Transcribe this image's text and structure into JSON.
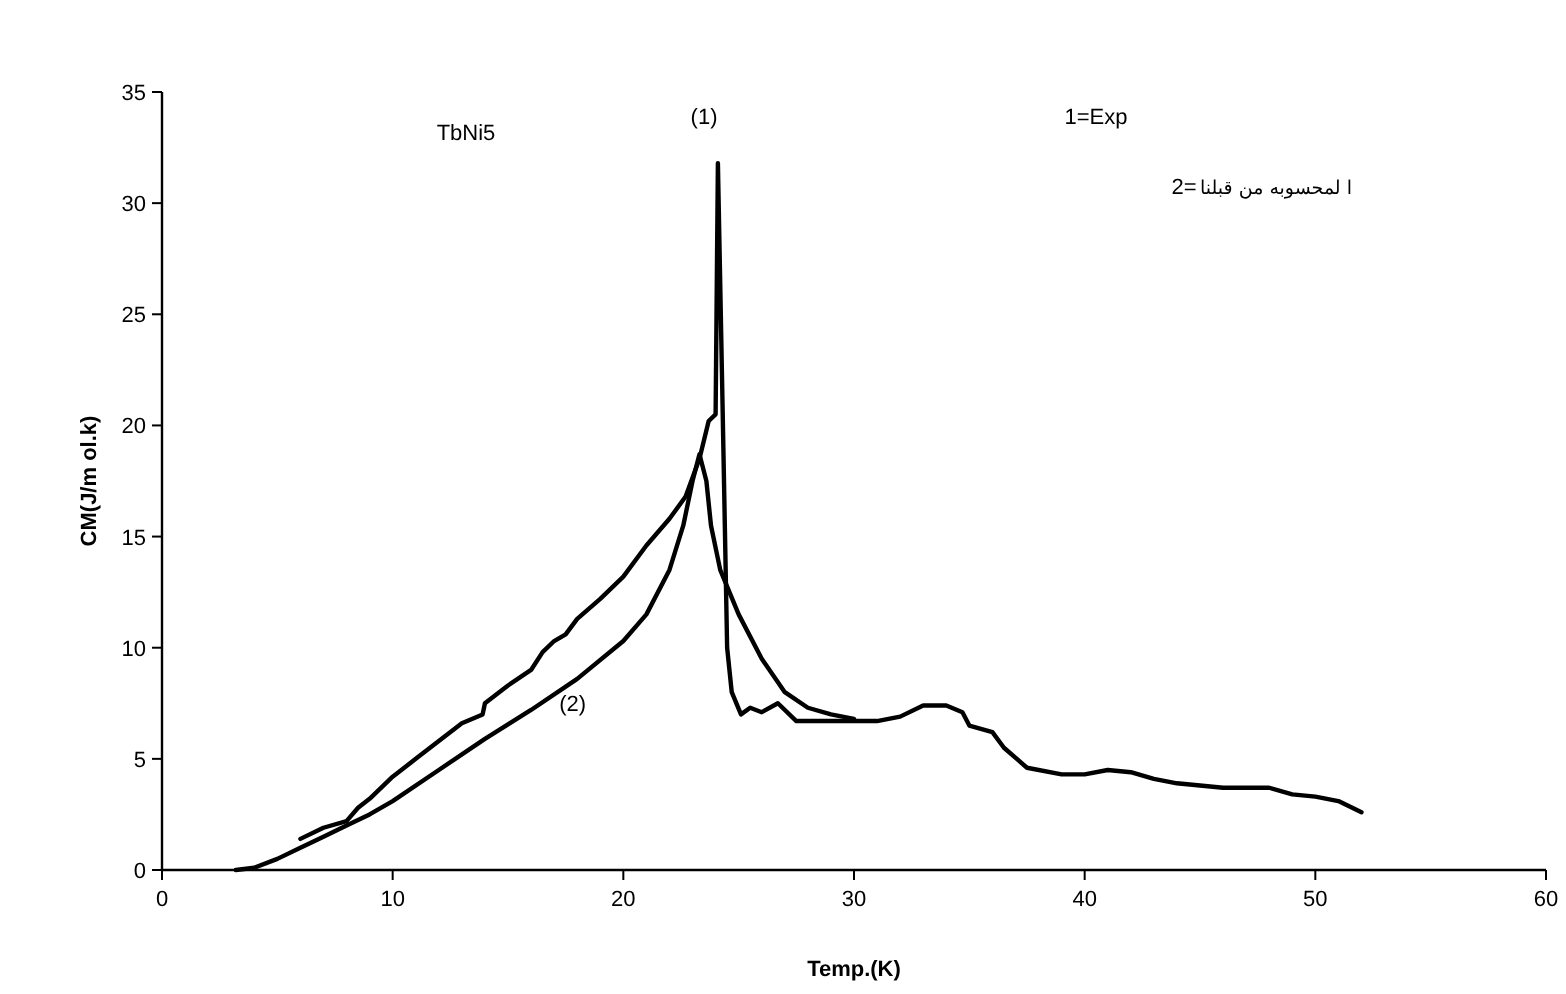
{
  "chart_data": {
    "type": "line",
    "xlabel": "Temp.(K)",
    "ylabel": "CM(J/m ol.k)",
    "xlim": [
      0,
      60
    ],
    "ylim": [
      0,
      35
    ],
    "xticks": [
      0,
      10,
      20,
      30,
      40,
      50,
      60
    ],
    "yticks": [
      0,
      5,
      10,
      15,
      20,
      25,
      30,
      35
    ],
    "grid": false,
    "marker": "none",
    "line_style": "solid",
    "annotations": [
      "TbNi5",
      "1=Exp",
      "2=",
      "ا لمحسوبه من قبلنا"
    ],
    "series": [
      {
        "name": "(1)",
        "color": "#000000",
        "x": [
          6,
          7,
          8,
          8.5,
          9,
          10,
          11,
          12,
          13,
          13.9,
          14,
          15,
          16,
          16.5,
          17,
          17.5,
          18,
          19,
          20,
          21,
          22,
          22.7,
          23.3,
          23.7,
          24.0,
          24.1,
          24.3,
          24.5,
          24.7,
          25.1,
          25.5,
          26,
          26.7,
          27.5,
          30,
          31,
          32,
          33,
          34,
          34.7,
          35,
          36,
          36.5,
          37.5,
          39,
          40,
          41,
          42,
          43,
          44,
          45,
          46,
          48,
          49,
          50,
          51,
          52
        ],
        "values": [
          1.4,
          1.9,
          2.2,
          2.8,
          3.2,
          4.2,
          5.0,
          5.8,
          6.6,
          7.0,
          7.5,
          8.3,
          9.0,
          9.8,
          10.3,
          10.6,
          11.3,
          12.2,
          13.2,
          14.6,
          15.8,
          16.8,
          18.5,
          20.2,
          20.5,
          31.8,
          21,
          10,
          8,
          7.0,
          7.3,
          7.1,
          7.5,
          6.7,
          6.7,
          6.7,
          6.9,
          7.4,
          7.4,
          7.1,
          6.5,
          6.2,
          5.5,
          4.6,
          4.3,
          4.3,
          4.5,
          4.4,
          4.1,
          3.9,
          3.8,
          3.7,
          3.7,
          3.4,
          3.3,
          3.1,
          2.6
        ]
      },
      {
        "name": "(2)",
        "color": "#000000",
        "x": [
          3.2,
          4,
          5,
          6,
          7,
          8,
          9,
          10,
          12,
          14,
          16,
          18,
          20,
          21,
          22,
          22.6,
          23.0,
          23.3,
          23.6,
          23.8,
          24.2,
          25,
          26,
          27,
          28,
          29,
          30
        ],
        "values": [
          0,
          0.1,
          0.5,
          1.0,
          1.5,
          2.0,
          2.5,
          3.1,
          4.5,
          5.9,
          7.2,
          8.6,
          10.3,
          11.5,
          13.5,
          15.5,
          17.5,
          18.7,
          17.5,
          15.5,
          13.5,
          11.5,
          9.5,
          8,
          7.3,
          7.0,
          6.8
        ]
      }
    ]
  }
}
